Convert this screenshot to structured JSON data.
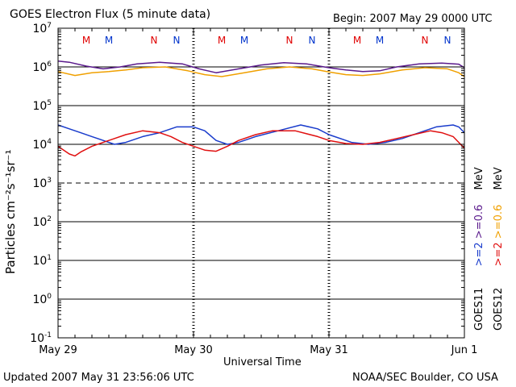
{
  "chart_data": {
    "type": "line",
    "title": "GOES Electron Flux (5 minute data)",
    "begin_label": "Begin: 2007 May 29 0000 UTC",
    "xlabel": "Universal Time",
    "ylabel": "Particles cm⁻²s⁻¹sr⁻¹",
    "x_unit": "hours since 2007 May 29 00:00 UTC",
    "xlim": [
      0,
      72
    ],
    "x_ticks": [
      {
        "label": "May 29",
        "hour": 0
      },
      {
        "label": "May 30",
        "hour": 24
      },
      {
        "label": "May 31",
        "hour": 48
      },
      {
        "label": "Jun 1",
        "hour": 72
      }
    ],
    "y_scale": "log",
    "ylim_exponent": [
      -1,
      7
    ],
    "y_ticks": [
      {
        "base": "10",
        "exp": "-1",
        "value": -1
      },
      {
        "base": "10",
        "exp": "0",
        "value": 0
      },
      {
        "base": "10",
        "exp": "1",
        "value": 1
      },
      {
        "base": "10",
        "exp": "2",
        "value": 2
      },
      {
        "base": "10",
        "exp": "3",
        "value": 3
      },
      {
        "base": "10",
        "exp": "4",
        "value": 4
      },
      {
        "base": "10",
        "exp": "5",
        "value": 5
      },
      {
        "base": "10",
        "exp": "6",
        "value": 6
      },
      {
        "base": "10",
        "exp": "7",
        "value": 7
      }
    ],
    "reference_lines": [
      {
        "log10": 6,
        "style": "solid"
      },
      {
        "log10": 5,
        "style": "solid"
      },
      {
        "log10": 4,
        "style": "solid"
      },
      {
        "log10": 3,
        "style": "dashed"
      },
      {
        "log10": 2,
        "style": "solid"
      },
      {
        "log10": 1,
        "style": "solid"
      },
      {
        "log10": 0,
        "style": "solid"
      }
    ],
    "markers": [
      {
        "label": "M",
        "hour": 5.0,
        "color": "#e00000"
      },
      {
        "label": "M",
        "hour": 9.0,
        "color": "#0033cc"
      },
      {
        "label": "N",
        "hour": 17.0,
        "color": "#e00000"
      },
      {
        "label": "N",
        "hour": 21.0,
        "color": "#0033cc"
      },
      {
        "label": "M",
        "hour": 29.0,
        "color": "#e00000"
      },
      {
        "label": "M",
        "hour": 33.0,
        "color": "#0033cc"
      },
      {
        "label": "N",
        "hour": 41.0,
        "color": "#e00000"
      },
      {
        "label": "N",
        "hour": 45.0,
        "color": "#0033cc"
      },
      {
        "label": "M",
        "hour": 53.0,
        "color": "#e00000"
      },
      {
        "label": "M",
        "hour": 57.0,
        "color": "#0033cc"
      },
      {
        "label": "N",
        "hour": 65.0,
        "color": "#e00000"
      },
      {
        "label": "N",
        "hour": 69.0,
        "color": "#0033cc"
      }
    ],
    "series": [
      {
        "name": "GOES11 >=0.6 MeV",
        "color": "#5a1a8c",
        "hours": [
          0,
          2,
          5,
          8,
          11,
          14,
          18,
          22,
          25,
          28,
          32,
          36,
          40,
          44,
          48,
          51,
          54,
          57,
          60,
          64,
          68,
          71,
          72
        ],
        "log10": [
          6.15,
          6.12,
          6.02,
          5.95,
          6.0,
          6.08,
          6.12,
          6.08,
          5.95,
          5.85,
          5.95,
          6.05,
          6.11,
          6.08,
          5.98,
          5.92,
          5.88,
          5.9,
          6.0,
          6.08,
          6.1,
          6.07,
          5.98
        ]
      },
      {
        "name": "GOES12 >=0.6 MeV",
        "color": "#f0a000",
        "hours": [
          0,
          3,
          6,
          9,
          12,
          15,
          19,
          23,
          26,
          29,
          33,
          37,
          41,
          45,
          48,
          51,
          54,
          57,
          61,
          65,
          69,
          71,
          72
        ],
        "log10": [
          5.88,
          5.78,
          5.85,
          5.88,
          5.92,
          5.98,
          6.0,
          5.9,
          5.8,
          5.75,
          5.85,
          5.95,
          6.0,
          5.95,
          5.87,
          5.8,
          5.78,
          5.82,
          5.92,
          5.98,
          5.95,
          5.85,
          5.75
        ]
      },
      {
        "name": "GOES11 >=2 MeV",
        "color": "#1a3ccc",
        "hours": [
          0,
          2,
          4,
          6,
          8,
          10,
          12,
          15,
          18,
          21,
          24,
          26,
          28,
          30,
          32,
          35,
          39,
          43,
          46,
          48,
          52,
          55,
          58,
          61,
          64,
          67,
          70,
          71,
          72
        ],
        "log10": [
          4.5,
          4.4,
          4.3,
          4.2,
          4.1,
          4.0,
          4.05,
          4.2,
          4.3,
          4.45,
          4.45,
          4.35,
          4.1,
          4.0,
          4.05,
          4.2,
          4.35,
          4.5,
          4.4,
          4.25,
          4.05,
          4.0,
          4.05,
          4.15,
          4.3,
          4.45,
          4.5,
          4.45,
          4.3
        ]
      },
      {
        "name": "GOES12 >=2 MeV",
        "color": "#e01010",
        "hours": [
          0,
          1,
          2,
          3,
          4,
          6,
          8,
          10,
          12,
          15,
          18,
          20,
          22,
          24,
          26,
          28,
          30,
          32,
          35,
          38,
          42,
          46,
          48,
          51,
          54,
          57,
          60,
          63,
          66,
          68,
          70,
          71,
          72
        ],
        "log10": [
          3.95,
          3.85,
          3.75,
          3.7,
          3.8,
          3.95,
          4.05,
          4.15,
          4.25,
          4.35,
          4.3,
          4.2,
          4.05,
          3.95,
          3.85,
          3.82,
          3.95,
          4.1,
          4.25,
          4.35,
          4.35,
          4.2,
          4.1,
          4.02,
          4.0,
          4.05,
          4.15,
          4.25,
          4.35,
          4.3,
          4.2,
          4.05,
          3.9
        ]
      }
    ],
    "legend": {
      "col1": [
        {
          "text": "GOES11",
          "color": "#000000"
        },
        {
          "text": ">=2",
          "color": "#1a3ccc"
        },
        {
          "text": ">=0.6",
          "color": "#5a1a8c"
        },
        {
          "text": "MeV",
          "color": "#000000"
        }
      ],
      "col2": [
        {
          "text": "GOES12",
          "color": "#000000"
        },
        {
          "text": ">=2",
          "color": "#e01010"
        },
        {
          "text": ">=0.6",
          "color": "#f0a000"
        },
        {
          "text": "MeV",
          "color": "#000000"
        }
      ]
    }
  },
  "footer": {
    "updated": "Updated 2007 May 31 23:56:06 UTC",
    "source": "NOAA/SEC Boulder, CO USA"
  }
}
